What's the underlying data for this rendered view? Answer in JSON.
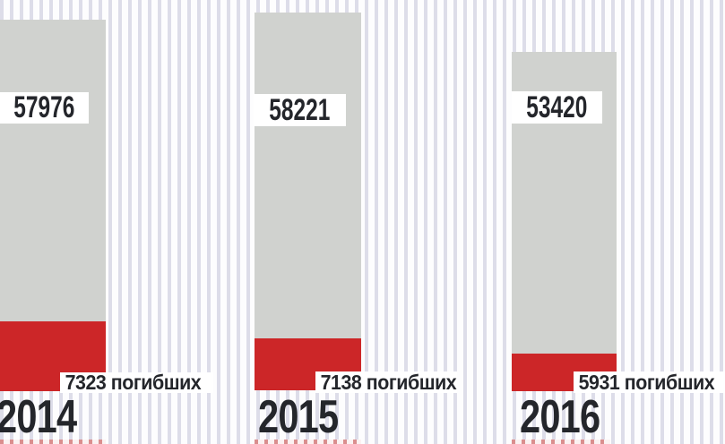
{
  "chart_data": {
    "type": "bar",
    "subtype": "stacked-column",
    "orientation": "vertical",
    "categories": [
      "2014",
      "2015",
      "2016"
    ],
    "series": [
      {
        "name": "upper-gray-segment",
        "color_key": "gray",
        "values": [
          57976,
          58221,
          53420
        ]
      },
      {
        "name": "погибших",
        "color_key": "red",
        "values": [
          7323,
          7138,
          5931
        ]
      }
    ],
    "data_labels": {
      "gray_segment": [
        "57976",
        "58221",
        "53420"
      ],
      "red_segment": [
        "7323 погибших",
        "7138 погибших",
        "5931 погибших"
      ]
    },
    "title": "",
    "xlabel": "",
    "ylabel": "",
    "legend": "none",
    "grid": false,
    "background": "white with light lavender vertical pinstripes"
  },
  "bars": [
    {
      "year": "2014",
      "value": "57976",
      "deaths": "7323 погибших"
    },
    {
      "year": "2015",
      "value": "58221",
      "deaths": "7138 погибших"
    },
    {
      "year": "2016",
      "value": "53420",
      "deaths": "5931 погибших"
    }
  ],
  "colors": {
    "red": "#cc2628",
    "gray": "#d0d2cf",
    "stripe": "#dddde9",
    "stripe_bg": "#fdfdfe",
    "text": "#24262b",
    "label_bg": "#ffffff",
    "red_stripe": "#da8e8e",
    "red_stripe_bg": "#fbf2f2"
  }
}
